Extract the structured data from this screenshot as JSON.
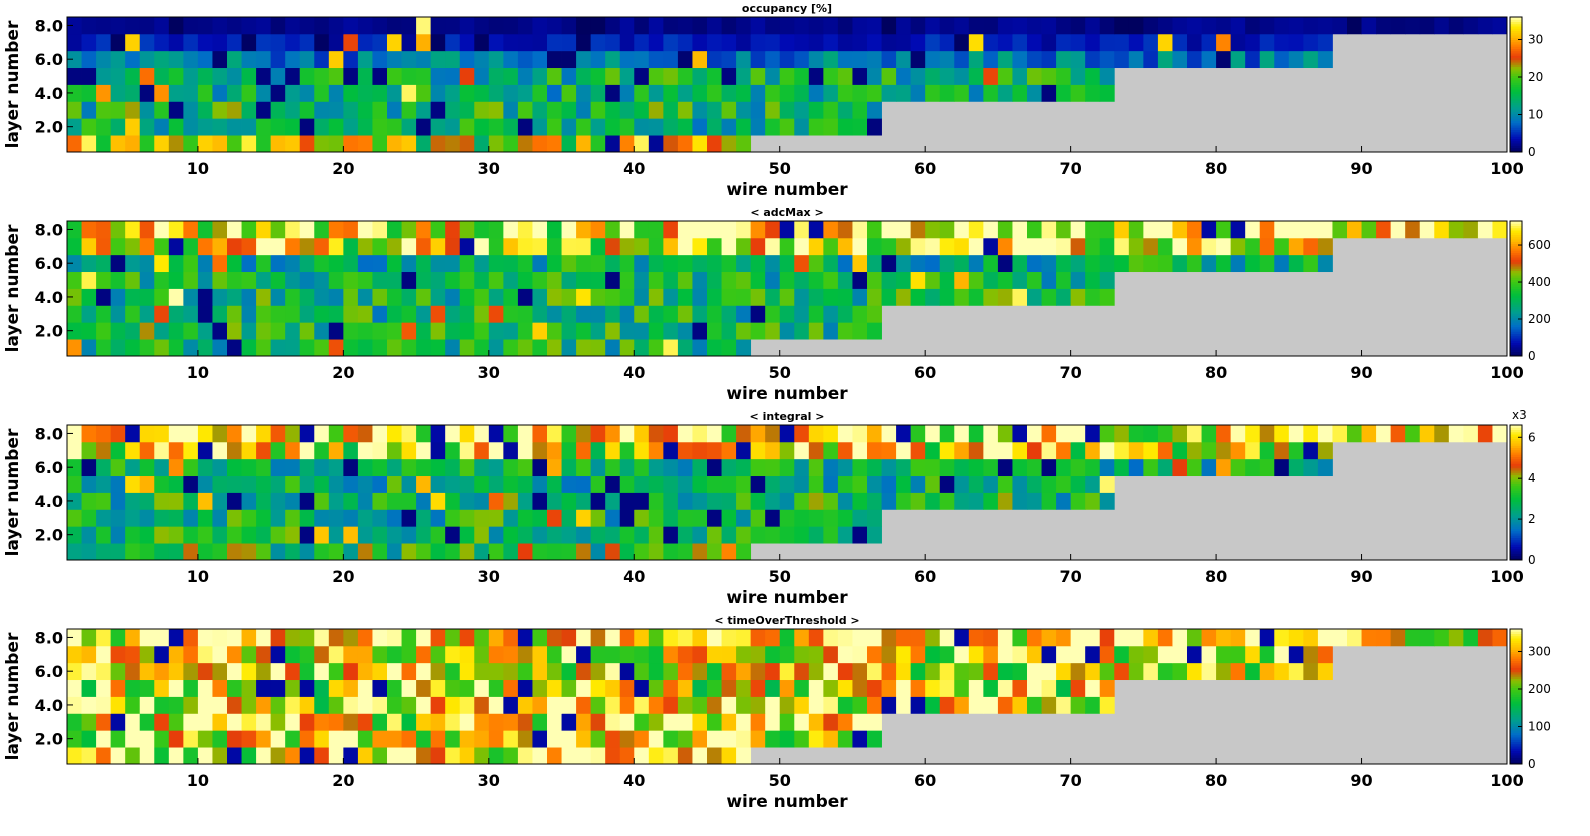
{
  "panels": [
    {
      "title": "occupancy [%]",
      "xlabel": "wire number",
      "ylabel": "layer number",
      "colorbar_ticks": [
        "0",
        "10",
        "20",
        "30"
      ],
      "colorbar_max": 36,
      "colorbar_multiplier": ""
    },
    {
      "title": "< adcMax >",
      "xlabel": "wire number",
      "ylabel": "layer number",
      "colorbar_ticks": [
        "0",
        "200",
        "400",
        "600"
      ],
      "colorbar_max": 730,
      "colorbar_multiplier": ""
    },
    {
      "title": "< integral >",
      "xlabel": "wire number",
      "ylabel": "layer number",
      "colorbar_ticks": [
        "0",
        "2",
        "4",
        "6"
      ],
      "colorbar_max": 6.6,
      "colorbar_multiplier": "x3"
    },
    {
      "title": "< timeOverThreshold >",
      "xlabel": "wire number",
      "ylabel": "layer number",
      "colorbar_ticks": [
        "0",
        "100",
        "200",
        "300"
      ],
      "colorbar_max": 360,
      "colorbar_multiplier": ""
    }
  ],
  "chart_data": [
    {
      "type": "heatmap",
      "title": "occupancy [%]",
      "xlabel": "wire number",
      "ylabel": "layer number",
      "xlim": [
        1,
        100
      ],
      "ylim": [
        1,
        9
      ],
      "x_ticks": [
        "10",
        "20",
        "30",
        "40",
        "50",
        "60",
        "70",
        "80",
        "90",
        "100"
      ],
      "y_ticks": [
        "2.0",
        "4.0",
        "6.0",
        "8.0"
      ],
      "z_range": [
        0,
        36
      ],
      "empty_color": "#c8c8c8",
      "layer_wire_counts": [
        47,
        56,
        56,
        72,
        72,
        87,
        87,
        99
      ],
      "layer_typical_values": [
        24,
        14,
        16,
        14,
        15,
        9,
        4,
        2
      ]
    },
    {
      "type": "heatmap",
      "title": "< adcMax >",
      "xlabel": "wire number",
      "ylabel": "layer number",
      "xlim": [
        1,
        100
      ],
      "ylim": [
        1,
        9
      ],
      "x_ticks": [
        "10",
        "20",
        "30",
        "40",
        "50",
        "60",
        "70",
        "80",
        "90",
        "100"
      ],
      "y_ticks": [
        "2.0",
        "4.0",
        "6.0",
        "8.0"
      ],
      "z_range": [
        0,
        730
      ],
      "empty_color": "#c8c8c8",
      "layer_wire_counts": [
        47,
        56,
        56,
        72,
        72,
        87,
        87,
        99
      ],
      "layer_typical_values": [
        330,
        330,
        310,
        320,
        300,
        290,
        560,
        600
      ]
    },
    {
      "type": "heatmap",
      "title": "< integral >",
      "xlabel": "wire number",
      "ylabel": "layer number",
      "xlim": [
        1,
        100
      ],
      "ylim": [
        1,
        9
      ],
      "x_ticks": [
        "10",
        "20",
        "30",
        "40",
        "50",
        "60",
        "70",
        "80",
        "90",
        "100"
      ],
      "y_ticks": [
        "2.0",
        "4.0",
        "6.0",
        "8.0"
      ],
      "z_range": [
        0,
        6.6
      ],
      "z_multiplier": "x3",
      "empty_color": "#c8c8c8",
      "layer_wire_counts": [
        47,
        56,
        56,
        72,
        72,
        87,
        87,
        99
      ],
      "layer_typical_values": [
        3.2,
        2.9,
        2.8,
        2.9,
        2.7,
        2.6,
        5.0,
        5.6
      ]
    },
    {
      "type": "heatmap",
      "title": "< timeOverThreshold >",
      "xlabel": "wire number",
      "ylabel": "layer number",
      "xlim": [
        1,
        100
      ],
      "ylim": [
        1,
        9
      ],
      "x_ticks": [
        "10",
        "20",
        "30",
        "40",
        "50",
        "60",
        "70",
        "80",
        "90",
        "100"
      ],
      "y_ticks": [
        "2.0",
        "4.0",
        "6.0",
        "8.0"
      ],
      "z_range": [
        0,
        360
      ],
      "empty_color": "#c8c8c8",
      "layer_wire_counts": [
        47,
        56,
        56,
        72,
        72,
        87,
        87,
        99
      ],
      "layer_typical_values": [
        300,
        295,
        290,
        280,
        270,
        265,
        290,
        305
      ]
    }
  ]
}
